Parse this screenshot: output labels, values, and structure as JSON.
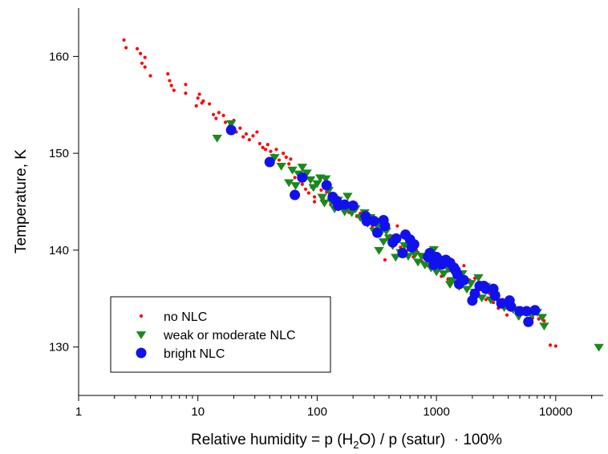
{
  "chart_data": {
    "type": "scatter",
    "title": "",
    "xlabel": {
      "prefix": "Relative humidity = p (H",
      "subscript": "2",
      "suffix": "O) / p (satur)  · 100%"
    },
    "ylabel": "Temperature, K",
    "x_scale": "log",
    "xlim": [
      1,
      25000
    ],
    "ylim": [
      125,
      165
    ],
    "x_ticks": [
      1,
      10,
      100,
      1000,
      10000
    ],
    "x_tick_labels": [
      "1",
      "10",
      "100",
      "1000",
      "10000"
    ],
    "y_ticks": [
      130,
      140,
      150,
      160
    ],
    "y_tick_labels": [
      "130",
      "140",
      "150",
      "160"
    ],
    "grid": false,
    "legend_position": "bottom-left",
    "series": [
      {
        "name": "no NLC",
        "marker": "dot",
        "color": "#ff0000",
        "points": [
          [
            2.4,
            161.7
          ],
          [
            2.5,
            160.9
          ],
          [
            3.1,
            160.8
          ],
          [
            3.3,
            160.3
          ],
          [
            3.6,
            159.9
          ],
          [
            3.4,
            159.3
          ],
          [
            3.6,
            158.9
          ],
          [
            4.0,
            158.0
          ],
          [
            5.6,
            158.2
          ],
          [
            5.8,
            157.5
          ],
          [
            6.0,
            157.0
          ],
          [
            6.3,
            156.5
          ],
          [
            7.9,
            157.1
          ],
          [
            7.9,
            156.2
          ],
          [
            10.0,
            155.7
          ],
          [
            10.3,
            156.1
          ],
          [
            10.8,
            155.2
          ],
          [
            9.7,
            154.9
          ],
          [
            11.1,
            155.4
          ],
          [
            12.5,
            155.1
          ],
          [
            13.5,
            154.0
          ],
          [
            14.2,
            153.6
          ],
          [
            15.0,
            154.2
          ],
          [
            16.4,
            153.9
          ],
          [
            17.0,
            153.2
          ],
          [
            18.4,
            152.8
          ],
          [
            20.0,
            153.4
          ],
          [
            21.0,
            152.2
          ],
          [
            22.6,
            152.6
          ],
          [
            24.0,
            151.7
          ],
          [
            25.4,
            152.0
          ],
          [
            27.0,
            151.4
          ],
          [
            29.0,
            151.8
          ],
          [
            31.3,
            152.2
          ],
          [
            33.0,
            151.0
          ],
          [
            35.0,
            150.6
          ],
          [
            36.9,
            150.4
          ],
          [
            38.5,
            150.9
          ],
          [
            40.8,
            150.2
          ],
          [
            43.0,
            149.8
          ],
          [
            45.5,
            150.4
          ],
          [
            48.0,
            149.3
          ],
          [
            52.0,
            150.0
          ],
          [
            55.0,
            149.6
          ],
          [
            58.0,
            148.9
          ],
          [
            62.0,
            148.1
          ],
          [
            65.0,
            147.5
          ],
          [
            70.0,
            147.9
          ],
          [
            75.0,
            146.8
          ],
          [
            80.0,
            146.3
          ],
          [
            85.0,
            145.9
          ],
          [
            90.0,
            146.5
          ],
          [
            95.0,
            145.5
          ],
          [
            100.0,
            147.0
          ],
          [
            108.0,
            146.2
          ],
          [
            112.0,
            145.3
          ],
          [
            120.0,
            146.0
          ],
          [
            130.0,
            144.7
          ],
          [
            140.0,
            145.8
          ],
          [
            150.0,
            144.2
          ],
          [
            160.0,
            145.0
          ],
          [
            170.0,
            144.4
          ],
          [
            185.0,
            143.9
          ],
          [
            200.0,
            144.8
          ],
          [
            215.0,
            143.5
          ],
          [
            230.0,
            143.8
          ],
          [
            250.0,
            142.9
          ],
          [
            270.0,
            143.3
          ],
          [
            290.0,
            142.4
          ],
          [
            310.0,
            142.7
          ],
          [
            330.0,
            141.9
          ],
          [
            350.0,
            142.2
          ],
          [
            380.0,
            141.1
          ],
          [
            410.0,
            141.5
          ],
          [
            440.0,
            140.9
          ],
          [
            470.0,
            142.5
          ],
          [
            500.0,
            140.3
          ],
          [
            530.0,
            141.8
          ],
          [
            560.0,
            139.9
          ],
          [
            600.0,
            140.5
          ],
          [
            640.0,
            139.3
          ],
          [
            680.0,
            140.0
          ],
          [
            720.0,
            139.6
          ],
          [
            760.0,
            138.8
          ],
          [
            800.0,
            139.2
          ],
          [
            850.0,
            138.4
          ],
          [
            900.0,
            139.0
          ],
          [
            950.0,
            138.1
          ],
          [
            1000.0,
            137.7
          ],
          [
            1050.0,
            138.9
          ],
          [
            1100.0,
            137.3
          ],
          [
            1200.0,
            138.3
          ],
          [
            1250.0,
            137.0
          ],
          [
            1300.0,
            137.9
          ],
          [
            1400.0,
            136.8
          ],
          [
            1500.0,
            137.5
          ],
          [
            1600.0,
            136.2
          ],
          [
            1700.0,
            138.4
          ],
          [
            1800.0,
            135.9
          ],
          [
            1900.0,
            136.9
          ],
          [
            2000.0,
            135.6
          ],
          [
            2100.0,
            137.1
          ],
          [
            2200.0,
            135.2
          ],
          [
            2400.0,
            136.4
          ],
          [
            2600.0,
            134.9
          ],
          [
            2800.0,
            135.5
          ],
          [
            3000.0,
            134.6
          ],
          [
            3300.0,
            134.0
          ],
          [
            3600.0,
            134.9
          ],
          [
            3900.0,
            133.3
          ],
          [
            4200.0,
            133.8
          ],
          [
            4500.0,
            134.3
          ],
          [
            4900.0,
            133.0
          ],
          [
            5300.0,
            133.6
          ],
          [
            5800.0,
            133.4
          ],
          [
            6400.0,
            133.0
          ],
          [
            7200.0,
            132.9
          ],
          [
            8000.0,
            132.7
          ],
          [
            9000.0,
            130.2
          ],
          [
            10000.0,
            130.1
          ],
          [
            370.0,
            139.0
          ],
          [
            95.0,
            145.0
          ],
          [
            60.0,
            149.4
          ],
          [
            420.0,
            140.5
          ]
        ]
      },
      {
        "name": "weak or moderate NLC",
        "marker": "triangle-down",
        "color": "#1a8a1a",
        "points": [
          [
            14.5,
            151.6
          ],
          [
            19.0,
            153.1
          ],
          [
            44.0,
            149.6
          ],
          [
            50.0,
            148.7
          ],
          [
            58.0,
            147.0
          ],
          [
            62.0,
            148.3
          ],
          [
            66.0,
            146.7
          ],
          [
            70.0,
            147.9
          ],
          [
            75.0,
            148.6
          ],
          [
            82.0,
            148.0
          ],
          [
            88.0,
            147.3
          ],
          [
            93.0,
            146.5
          ],
          [
            100.0,
            146.9
          ],
          [
            106.0,
            147.5
          ],
          [
            110.0,
            145.5
          ],
          [
            115.0,
            144.9
          ],
          [
            125.0,
            146.2
          ],
          [
            132.0,
            145.0
          ],
          [
            140.0,
            144.3
          ],
          [
            150.0,
            145.2
          ],
          [
            160.0,
            144.8
          ],
          [
            170.0,
            144.0
          ],
          [
            180.0,
            145.6
          ],
          [
            195.0,
            143.9
          ],
          [
            210.0,
            144.3
          ],
          [
            230.0,
            143.4
          ],
          [
            250.0,
            143.9
          ],
          [
            265.0,
            142.8
          ],
          [
            280.0,
            143.4
          ],
          [
            300.0,
            142.0
          ],
          [
            320.0,
            142.5
          ],
          [
            340.0,
            141.8
          ],
          [
            360.0,
            140.9
          ],
          [
            380.0,
            142.0
          ],
          [
            400.0,
            141.3
          ],
          [
            430.0,
            140.5
          ],
          [
            460.0,
            141.1
          ],
          [
            500.0,
            139.8
          ],
          [
            540.0,
            140.5
          ],
          [
            580.0,
            139.4
          ],
          [
            620.0,
            140.0
          ],
          [
            660.0,
            139.6
          ],
          [
            700.0,
            138.8
          ],
          [
            750.0,
            139.4
          ],
          [
            800.0,
            138.5
          ],
          [
            850.0,
            139.3
          ],
          [
            900.0,
            138.2
          ],
          [
            950.0,
            140.1
          ],
          [
            1000.0,
            137.8
          ],
          [
            1050.0,
            138.6
          ],
          [
            1150.0,
            137.6
          ],
          [
            1250.0,
            138.1
          ],
          [
            1350.0,
            136.9
          ],
          [
            1450.0,
            137.4
          ],
          [
            1550.0,
            136.3
          ],
          [
            1650.0,
            137.6
          ],
          [
            1800.0,
            136.0
          ],
          [
            1950.0,
            136.6
          ],
          [
            2100.0,
            135.7
          ],
          [
            2250.0,
            137.2
          ],
          [
            2400.0,
            135.1
          ],
          [
            2600.0,
            136.3
          ],
          [
            2850.0,
            134.9
          ],
          [
            3100.0,
            135.4
          ],
          [
            3400.0,
            134.6
          ],
          [
            3700.0,
            134.1
          ],
          [
            4000.0,
            134.6
          ],
          [
            4400.0,
            133.9
          ],
          [
            4900.0,
            133.2
          ],
          [
            5500.0,
            133.7
          ],
          [
            6300.0,
            133.3
          ],
          [
            7000.0,
            133.6
          ],
          [
            7700.0,
            133.1
          ],
          [
            8000.0,
            132.2
          ],
          [
            23000.0,
            130.0
          ],
          [
            118.0,
            147.4
          ],
          [
            455.0,
            139.3
          ],
          [
            330.0,
            140.0
          ],
          [
            1300.0,
            136.5
          ],
          [
            2750.0,
            136.0
          ]
        ]
      },
      {
        "name": "bright NLC",
        "marker": "circle",
        "color": "#1111ee",
        "points": [
          [
            19.0,
            152.4
          ],
          [
            40.0,
            149.1
          ],
          [
            65.0,
            145.7
          ],
          [
            75.0,
            147.5
          ],
          [
            120.0,
            146.7
          ],
          [
            135.0,
            145.5
          ],
          [
            145.0,
            145.1
          ],
          [
            150.0,
            144.6
          ],
          [
            170.0,
            144.7
          ],
          [
            200.0,
            144.6
          ],
          [
            255.0,
            143.5
          ],
          [
            260.0,
            143.0
          ],
          [
            300.0,
            143.0
          ],
          [
            320.0,
            141.8
          ],
          [
            360.0,
            143.1
          ],
          [
            370.0,
            142.5
          ],
          [
            430.0,
            140.8
          ],
          [
            460.0,
            141.2
          ],
          [
            520.0,
            139.7
          ],
          [
            550.0,
            141.6
          ],
          [
            600.0,
            141.1
          ],
          [
            620.0,
            140.3
          ],
          [
            650.0,
            140.6
          ],
          [
            880.0,
            139.7
          ],
          [
            950.0,
            138.5
          ],
          [
            1000.0,
            139.3
          ],
          [
            1050.0,
            139.0
          ],
          [
            1100.0,
            138.5
          ],
          [
            1200.0,
            139.0
          ],
          [
            1300.0,
            138.7
          ],
          [
            1400.0,
            138.2
          ],
          [
            1450.0,
            137.9
          ],
          [
            1500.0,
            137.5
          ],
          [
            1550.0,
            136.5
          ],
          [
            1700.0,
            136.9
          ],
          [
            2000.0,
            134.8
          ],
          [
            2100.0,
            135.5
          ],
          [
            2300.0,
            136.3
          ],
          [
            2500.0,
            136.3
          ],
          [
            2600.0,
            136.0
          ],
          [
            3000.0,
            136.0
          ],
          [
            3100.0,
            135.3
          ],
          [
            3500.0,
            134.5
          ],
          [
            4100.0,
            134.8
          ],
          [
            4200.0,
            134.2
          ],
          [
            5000.0,
            133.7
          ],
          [
            5700.0,
            133.7
          ],
          [
            5900.0,
            132.6
          ],
          [
            6700.0,
            133.8
          ],
          [
            850.0,
            139.3
          ]
        ]
      }
    ]
  }
}
